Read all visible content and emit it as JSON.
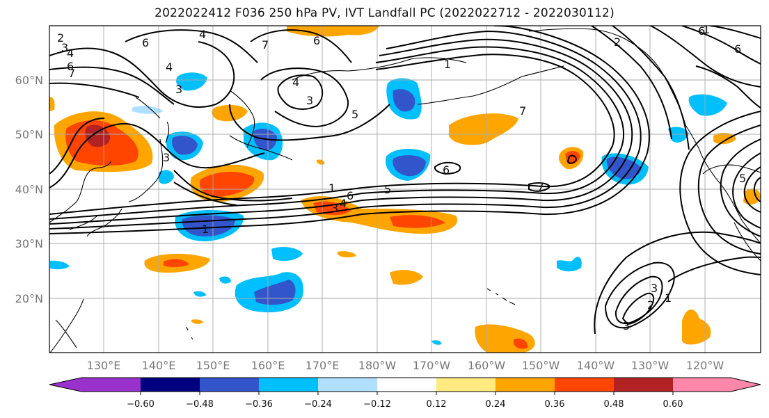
{
  "title": "2022022412 F036 250 hPa PV, IVT Landfall PC (2022022712 - 2022030112)",
  "map": {
    "lat_labels": [
      "60°N",
      "50°N",
      "40°N",
      "30°N",
      "20°N"
    ],
    "lon_labels": [
      "130°E",
      "140°E",
      "150°E",
      "160°E",
      "170°E",
      "180°W",
      "170°W",
      "160°W",
      "150°W",
      "140°W",
      "130°W",
      "120°W"
    ],
    "contour_labels": [
      "2",
      "3",
      "4",
      "6",
      "7",
      "4",
      "3",
      "6",
      "7",
      "4",
      "3",
      "5",
      "1",
      "6",
      "7",
      "4",
      "2",
      "6",
      "1",
      "3",
      "4",
      "5",
      "1",
      "6",
      "7",
      "3",
      "6",
      "5",
      "3",
      "2",
      "3",
      "1",
      "6",
      "1"
    ]
  },
  "colorbar": {
    "colors": [
      "#9932cc",
      "#000080",
      "#3355cc",
      "#00bfff",
      "#b0e0ff",
      "#ffffff",
      "#ffeb80",
      "#ffa500",
      "#ff4500",
      "#b22222",
      "#ff88aa"
    ],
    "tick_labels": [
      "−0.60",
      "−0.48",
      "−0.36",
      "−0.24",
      "−0.12",
      "0.12",
      "0.24",
      "0.36",
      "0.48",
      "0.60"
    ]
  }
}
